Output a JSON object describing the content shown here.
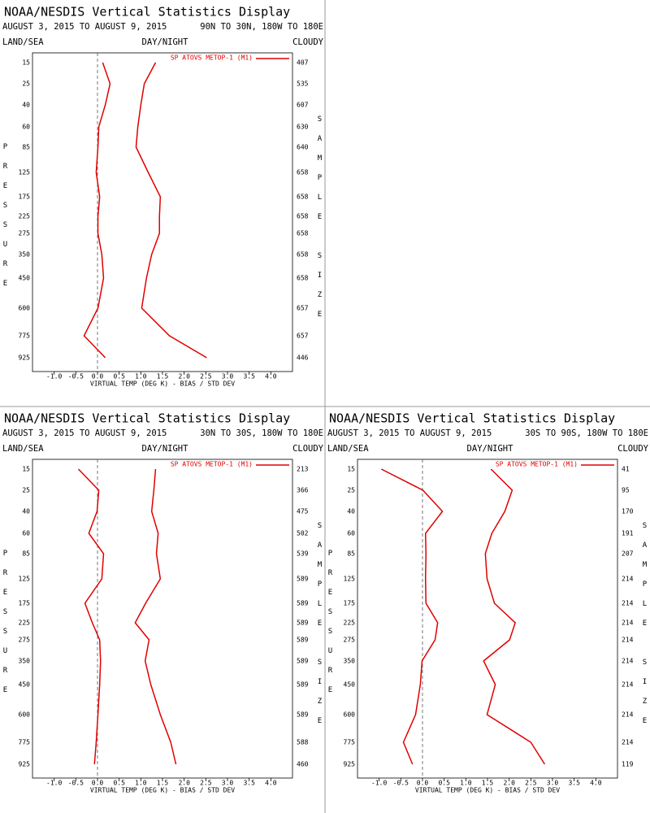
{
  "chart_data": [
    {
      "type": "line",
      "title": "NOAA/NESDIS Vertical Statistics Display",
      "subtitle": "AUGUST 3, 2015 TO AUGUST 9, 2015",
      "region": "90N TO 30N, 180W TO 180E",
      "labels": [
        "LAND/SEA",
        "DAY/NIGHT",
        "CLOUDY"
      ],
      "y_label": "PRESSURE",
      "y2_label": "SAMPLE SIZE",
      "x_label": "VIRTUAL TEMP (DEG K) - BIAS / STD DEV",
      "categories": [
        15,
        25,
        40,
        60,
        85,
        125,
        175,
        225,
        275,
        350,
        450,
        600,
        775,
        925
      ],
      "sample_sizes": [
        407,
        535,
        607,
        630,
        640,
        658,
        658,
        658,
        658,
        658,
        658,
        657,
        657,
        446
      ],
      "series": [
        {
          "name": "SP ATOVS METOP-1 (M1)",
          "color": "#e00000",
          "values": [
            0.12,
            0.29,
            0.18,
            0.03,
            0.01,
            -0.03,
            0.05,
            0.01,
            0.01,
            0.1,
            0.14,
            0.01,
            -0.31,
            0.18
          ]
        },
        {
          "color": "#e00000",
          "values": [
            1.34,
            1.08,
            1.0,
            0.93,
            0.89,
            1.17,
            1.45,
            1.43,
            1.43,
            1.25,
            1.13,
            1.02,
            1.66,
            2.52
          ]
        }
      ],
      "xlim": [
        -1.5,
        4.5
      ],
      "xticks": [
        {
          "value": -1,
          "label": "-1.0"
        },
        -0.5,
        {
          "value": 0,
          "label": "0.0"
        },
        0.5,
        {
          "value": 1,
          "label": "1.0"
        },
        1.5,
        {
          "value": 2,
          "label": "2.0"
        },
        2.5,
        {
          "value": 3,
          "label": "3.0"
        },
        3.5,
        {
          "value": 4,
          "label": "4.0"
        }
      ]
    },
    {
      "type": "line",
      "title": "NOAA/NESDIS Vertical Statistics Display",
      "subtitle": "AUGUST 3, 2015 TO AUGUST 9, 2015",
      "region": "30N TO 30S, 180W TO 180E",
      "labels": [
        "LAND/SEA",
        "DAY/NIGHT",
        "CLOUDY"
      ],
      "y_label": "PRESSURE",
      "y2_label": "SAMPLE SIZE",
      "x_label": "VIRTUAL TEMP (DEG K) - BIAS / STD DEV",
      "categories": [
        15,
        25,
        40,
        60,
        85,
        125,
        175,
        225,
        275,
        350,
        450,
        600,
        775,
        925
      ],
      "sample_sizes": [
        213,
        366,
        475,
        502,
        539,
        589,
        589,
        589,
        589,
        589,
        589,
        589,
        588,
        460
      ],
      "series": [
        {
          "name": "SP ATOVS METOP-1 (M1)",
          "color": "#e00000",
          "values": [
            -0.44,
            0.03,
            -0.01,
            -0.2,
            0.14,
            0.1,
            -0.29,
            -0.12,
            0.05,
            0.07,
            0.05,
            0.01,
            -0.03,
            -0.07
          ]
        },
        {
          "color": "#e00000",
          "values": [
            1.34,
            1.3,
            1.25,
            1.4,
            1.36,
            1.45,
            1.11,
            0.87,
            1.19,
            1.1,
            1.23,
            1.45,
            1.69,
            1.81
          ]
        }
      ],
      "xlim": [
        -1.5,
        4.5
      ],
      "xticks": [
        {
          "value": -1,
          "label": "-1.0"
        },
        -0.5,
        {
          "value": 0,
          "label": "0.0"
        },
        0.5,
        {
          "value": 1,
          "label": "1.0"
        },
        1.5,
        {
          "value": 2,
          "label": "2.0"
        },
        2.5,
        {
          "value": 3,
          "label": "3.0"
        },
        3.5,
        {
          "value": 4,
          "label": "4.0"
        }
      ]
    },
    {
      "type": "line",
      "title": "NOAA/NESDIS Vertical Statistics Display",
      "subtitle": "AUGUST 3, 2015 TO AUGUST 9, 2015",
      "region": "30S TO 90S, 180W TO 180E",
      "labels": [
        "LAND/SEA",
        "DAY/NIGHT",
        "CLOUDY"
      ],
      "y_label": "PRESSURE",
      "y2_label": "SAMPLE SIZE",
      "x_label": "VIRTUAL TEMP (DEG K) - BIAS / STD DEV",
      "categories": [
        15,
        25,
        40,
        60,
        85,
        125,
        175,
        225,
        275,
        350,
        450,
        600,
        775,
        925
      ],
      "sample_sizes": [
        41,
        95,
        170,
        191,
        207,
        214,
        214,
        214,
        214,
        214,
        214,
        214,
        214,
        119
      ],
      "series": [
        {
          "name": "SP ATOVS METOP-1 (M1)",
          "color": "#e00000",
          "values": [
            -0.95,
            0.01,
            0.46,
            0.07,
            0.08,
            0.07,
            0.08,
            0.35,
            0.29,
            -0.01,
            -0.05,
            -0.16,
            -0.44,
            -0.23
          ]
        },
        {
          "color": "#e00000",
          "values": [
            1.58,
            2.07,
            1.9,
            1.6,
            1.45,
            1.49,
            1.66,
            2.14,
            2.01,
            1.41,
            1.68,
            1.49,
            2.5,
            2.82
          ]
        }
      ],
      "xlim": [
        -1.5,
        4.5
      ],
      "xticks": [
        {
          "value": -1,
          "label": "-1.0"
        },
        -0.5,
        {
          "value": 0,
          "label": "0.0"
        },
        0.5,
        {
          "value": 1,
          "label": "1.0"
        },
        1.5,
        {
          "value": 2,
          "label": "2.0"
        },
        2.5,
        {
          "value": 3,
          "label": "3.0"
        },
        3.5,
        {
          "value": 4,
          "label": "4.0"
        }
      ]
    }
  ]
}
